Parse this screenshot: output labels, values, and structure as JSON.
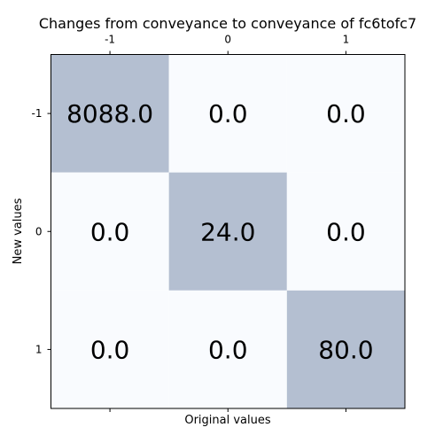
{
  "chart_data": {
    "type": "heatmap",
    "title": "Changes from conveyance to conveyance of fc6tofc7",
    "xlabel": "Original values",
    "ylabel": "New values",
    "x_categories": [
      "-1",
      "0",
      "1"
    ],
    "y_categories": [
      "-1",
      "0",
      "1"
    ],
    "values": [
      [
        8088.0,
        0.0,
        0.0
      ],
      [
        0.0,
        24.0,
        0.0
      ],
      [
        0.0,
        0.0,
        80.0
      ]
    ],
    "cell_labels": [
      [
        "8088.0",
        "0.0",
        "0.0"
      ],
      [
        "0.0",
        "24.0",
        "0.0"
      ],
      [
        "0.0",
        "0.0",
        "80.0"
      ]
    ],
    "colors": {
      "high": "#b4bfd1",
      "low": "#f9fbfe",
      "text": "#000000",
      "axis": "#000000"
    }
  }
}
